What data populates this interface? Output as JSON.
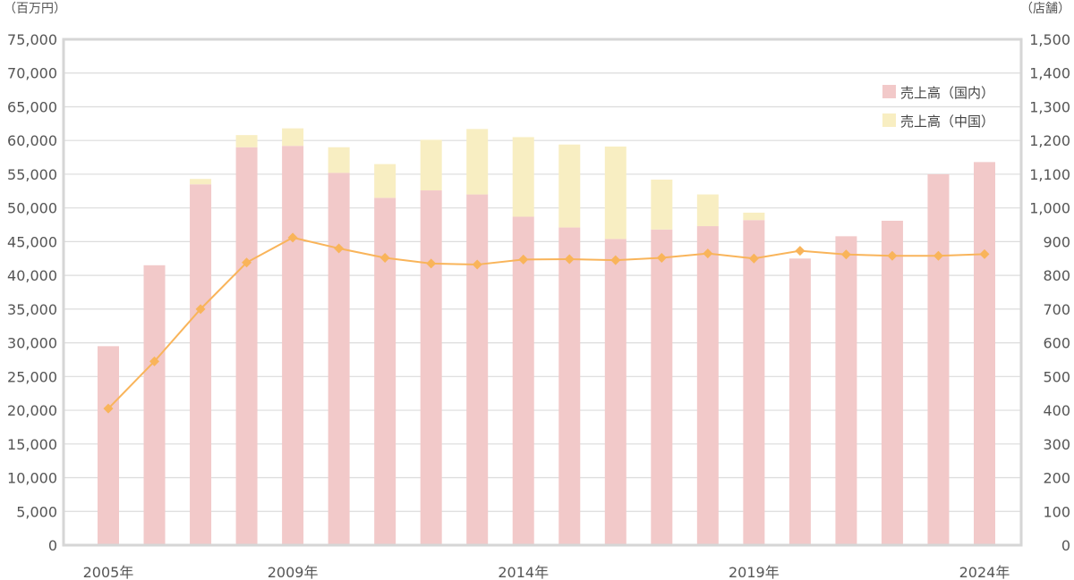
{
  "chart_data": {
    "type": "bar",
    "stacked": true,
    "secondary_series_type": "line",
    "y_left_unit": "（百万円）",
    "y_right_unit": "（店舗）",
    "y_left_range": [
      0,
      75000
    ],
    "y_left_ticks": [
      "0",
      "5,000",
      "10,000",
      "15,000",
      "20,000",
      "25,000",
      "30,000",
      "35,000",
      "40,000",
      "45,000",
      "50,000",
      "55,000",
      "60,000",
      "65,000",
      "70,000",
      "75,000"
    ],
    "y_right_range": [
      0,
      1500
    ],
    "y_right_ticks": [
      "0",
      "100",
      "200",
      "300",
      "400",
      "500",
      "600",
      "700",
      "800",
      "900",
      "1,000",
      "1,100",
      "1,200",
      "1,300",
      "1,400",
      "1,500"
    ],
    "x_years": [
      2005,
      2006,
      2007,
      2008,
      2009,
      2010,
      2011,
      2012,
      2013,
      2014,
      2015,
      2016,
      2017,
      2018,
      2019,
      2020,
      2021,
      2022,
      2023,
      2024
    ],
    "x_tick_labels": [
      {
        "year": 2005,
        "label": "2005年"
      },
      {
        "year": 2009,
        "label": "2009年"
      },
      {
        "year": 2014,
        "label": "2014年"
      },
      {
        "year": 2019,
        "label": "2019年"
      },
      {
        "year": 2024,
        "label": "2024年"
      }
    ],
    "series": [
      {
        "name": "売上高（国内）",
        "type": "bar",
        "color": "#f2c9c9",
        "values": [
          29500,
          41500,
          53500,
          59000,
          59200,
          55200,
          51500,
          52600,
          52000,
          48700,
          47100,
          45400,
          46800,
          47300,
          48200,
          42500,
          45800,
          48100,
          55000,
          56800
        ]
      },
      {
        "name": "売上高（中国）",
        "type": "bar",
        "color": "#f8eec2",
        "values": [
          0,
          0,
          800,
          1800,
          2600,
          3800,
          5000,
          7500,
          9700,
          11800,
          12300,
          13700,
          7400,
          4700,
          1100,
          0,
          0,
          0,
          0,
          0
        ]
      },
      {
        "name": "",
        "type": "line",
        "axis": "right",
        "color": "#f9b45a",
        "values": [
          405,
          545,
          700,
          838,
          912,
          880,
          852,
          835,
          832,
          847,
          848,
          845,
          852,
          865,
          850,
          873,
          862,
          858,
          858,
          863
        ]
      }
    ],
    "grid": true,
    "legend_position": "top-right"
  }
}
